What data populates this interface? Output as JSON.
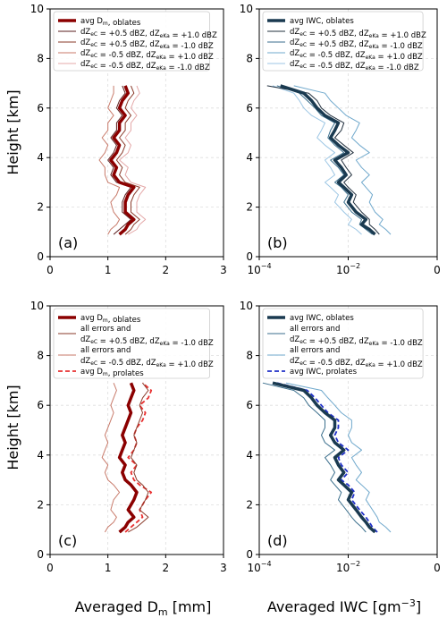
{
  "figure": {
    "ylabel": "Height [km]",
    "xlabel_left": "Averaged D",
    "xlabel_left_sub": "m",
    "xlabel_left_unit": " [mm]",
    "xlabel_right": "Averaged IWC [gm",
    "xlabel_right_sup": "−3",
    "xlabel_right_end": "]"
  },
  "colors": {
    "dm_main": "#8b0000",
    "dm_prolate": "#e83030",
    "iwc_main": "#1a3a50",
    "iwc_prolate": "#2030c8",
    "err_dark_red": "#5a1e1e",
    "err_mid_red": "#8a3a2a",
    "err_light_red": "#c87a6a",
    "err_pale_red": "#e4a8a8",
    "err_dark_blue": "#22303e",
    "err_mid_blue": "#3a6e8c",
    "err_light_blue": "#6fa8cc",
    "err_pale_blue": "#9cc6e4"
  },
  "chart_data": [
    {
      "panel": "(a)",
      "type": "line",
      "xlim": [
        0,
        3
      ],
      "ylim": [
        0,
        10
      ],
      "xticks": [
        "0",
        "1",
        "2",
        "3"
      ],
      "yticks": [
        "0",
        "2",
        "4",
        "6",
        "8",
        "10"
      ],
      "legend_position": "top-left",
      "height_km": [
        0.9,
        1.1,
        1.3,
        1.5,
        1.8,
        2.2,
        2.5,
        2.8,
        3.0,
        3.3,
        3.6,
        3.9,
        4.2,
        4.5,
        4.8,
        5.1,
        5.4,
        5.7,
        6.0,
        6.3,
        6.6,
        6.9
      ],
      "series": [
        {
          "name": "avg D_m, oblates",
          "color_key": "dm_main",
          "width": 3.5,
          "dash": "",
          "values": [
            1.2,
            1.3,
            1.35,
            1.45,
            1.3,
            1.3,
            1.35,
            1.45,
            1.2,
            1.1,
            1.15,
            1.05,
            1.15,
            1.2,
            1.1,
            1.2,
            1.2,
            1.3,
            1.2,
            1.25,
            1.35,
            1.3
          ]
        },
        {
          "name": "dZ_eC = +0.5 dBZ, dZ_eKa = +1.0 dBZ",
          "color_key": "err_dark_red",
          "width": 1,
          "dash": "",
          "values": [
            1.1,
            1.2,
            1.3,
            1.4,
            1.25,
            1.25,
            1.3,
            1.4,
            1.15,
            1.05,
            1.1,
            1.0,
            1.1,
            1.15,
            1.05,
            1.15,
            1.15,
            1.25,
            1.15,
            1.2,
            1.3,
            1.25
          ]
        },
        {
          "name": "dZ_eC = +0.5 dBZ, dZ_eKa = -1.0 dBZ",
          "color_key": "err_mid_red",
          "width": 1,
          "dash": "",
          "values": [
            1.3,
            1.4,
            1.45,
            1.55,
            1.4,
            1.4,
            1.45,
            1.55,
            1.3,
            1.2,
            1.25,
            1.15,
            1.25,
            1.3,
            1.2,
            1.3,
            1.3,
            1.4,
            1.3,
            1.35,
            1.45,
            1.4
          ]
        },
        {
          "name": "dZ_eC = -0.5 dBZ, dZ_eKa = +1.0 dBZ",
          "color_key": "err_light_red",
          "width": 1,
          "dash": "",
          "values": [
            1.0,
            1.05,
            1.15,
            1.2,
            1.1,
            1.05,
            1.15,
            1.2,
            1.0,
            0.95,
            0.95,
            0.85,
            0.95,
            1.0,
            0.9,
            1.0,
            1.0,
            1.1,
            1.0,
            1.05,
            1.1,
            1.1
          ]
        },
        {
          "name": "dZ_eC = -0.5 dBZ, dZ_eKa = -1.0 dBZ",
          "color_key": "err_pale_red",
          "width": 1,
          "dash": "",
          "values": [
            1.35,
            1.5,
            1.55,
            1.65,
            1.5,
            1.5,
            1.55,
            1.65,
            1.4,
            1.3,
            1.35,
            1.2,
            1.35,
            1.4,
            1.3,
            1.4,
            1.4,
            1.5,
            1.4,
            1.45,
            1.55,
            1.5
          ]
        }
      ]
    },
    {
      "panel": "(b)",
      "type": "line",
      "xscale": "log",
      "xlim": [
        0.0001,
        1
      ],
      "ylim": [
        0,
        10
      ],
      "xticks": [
        "10",
        "10",
        "0"
      ],
      "xtick_exponents": [
        "−4",
        "−2",
        ""
      ],
      "yticks": [
        "0",
        "2",
        "4",
        "6",
        "8",
        "10"
      ],
      "legend_position": "top-left",
      "height_km": [
        0.9,
        1.1,
        1.3,
        1.5,
        1.8,
        2.2,
        2.5,
        2.8,
        3.0,
        3.3,
        3.6,
        3.9,
        4.2,
        4.5,
        4.8,
        5.1,
        5.4,
        5.7,
        6.0,
        6.3,
        6.6,
        6.9
      ],
      "series": [
        {
          "name": "avg IWC, oblates",
          "color_key": "iwc_main",
          "width": 3.5,
          "dash": "",
          "values": [
            0.04,
            0.03,
            0.02,
            0.025,
            0.015,
            0.01,
            0.012,
            0.008,
            0.006,
            0.009,
            0.007,
            0.005,
            0.01,
            0.006,
            0.004,
            0.005,
            0.006,
            0.003,
            0.002,
            0.0015,
            0.001,
            0.0003
          ]
        },
        {
          "name": "dZ_eC = +0.5 dBZ, dZ_eKa = +1.0 dBZ",
          "color_key": "err_dark_blue",
          "width": 1,
          "dash": "",
          "values": [
            0.05,
            0.04,
            0.03,
            0.03,
            0.02,
            0.013,
            0.015,
            0.01,
            0.008,
            0.012,
            0.009,
            0.007,
            0.013,
            0.008,
            0.005,
            0.007,
            0.008,
            0.004,
            0.0025,
            0.002,
            0.0013,
            0.00015
          ]
        },
        {
          "name": "dZ_eC = +0.5 dBZ, dZ_eKa = -1.0 dBZ",
          "color_key": "err_mid_blue",
          "width": 1,
          "dash": "",
          "values": [
            0.035,
            0.025,
            0.018,
            0.02,
            0.012,
            0.008,
            0.01,
            0.007,
            0.005,
            0.008,
            0.006,
            0.004,
            0.008,
            0.005,
            0.0035,
            0.004,
            0.005,
            0.0025,
            0.0018,
            0.0012,
            0.0008,
            0.00025
          ]
        },
        {
          "name": "dZ_eC = -0.5 dBZ, dZ_eKa = +1.0 dBZ",
          "color_key": "err_light_blue",
          "width": 1,
          "dash": "",
          "values": [
            0.09,
            0.07,
            0.05,
            0.06,
            0.04,
            0.03,
            0.035,
            0.025,
            0.02,
            0.03,
            0.02,
            0.015,
            0.03,
            0.018,
            0.012,
            0.015,
            0.018,
            0.009,
            0.006,
            0.004,
            0.003,
            0.0006
          ]
        },
        {
          "name": "dZ_eC = -0.5 dBZ, dZ_eKa = -1.0 dBZ",
          "color_key": "err_pale_blue",
          "width": 1,
          "dash": "",
          "values": [
            0.02,
            0.015,
            0.01,
            0.012,
            0.008,
            0.005,
            0.006,
            0.004,
            0.003,
            0.005,
            0.004,
            0.003,
            0.005,
            0.003,
            0.002,
            0.0025,
            0.003,
            0.0015,
            0.001,
            0.0008,
            0.0006,
            0.0002
          ]
        }
      ]
    },
    {
      "panel": "(c)",
      "type": "line",
      "xlim": [
        0,
        3
      ],
      "ylim": [
        0,
        10
      ],
      "xticks": [
        "0",
        "1",
        "2",
        "3"
      ],
      "yticks": [
        "0",
        "2",
        "4",
        "6",
        "8",
        "10"
      ],
      "legend_position": "top-left",
      "height_km": [
        0.9,
        1.1,
        1.3,
        1.5,
        1.8,
        2.2,
        2.5,
        2.8,
        3.0,
        3.3,
        3.6,
        3.9,
        4.2,
        4.5,
        4.8,
        5.1,
        5.4,
        5.7,
        6.0,
        6.3,
        6.6,
        6.9
      ],
      "series": [
        {
          "name": "avg D_m, oblates",
          "color_key": "dm_main",
          "width": 3.5,
          "dash": "",
          "values": [
            1.2,
            1.3,
            1.35,
            1.45,
            1.35,
            1.45,
            1.5,
            1.4,
            1.3,
            1.25,
            1.3,
            1.2,
            1.25,
            1.3,
            1.25,
            1.3,
            1.35,
            1.4,
            1.35,
            1.4,
            1.45,
            1.4
          ]
        },
        {
          "name": "all errors and dZ_eC = +0.5 dBZ, dZ_eKa = -1.0 dBZ",
          "color_key": "err_mid_red",
          "width": 1,
          "dash": "",
          "values": [
            1.35,
            1.5,
            1.6,
            1.7,
            1.55,
            1.65,
            1.7,
            1.6,
            1.5,
            1.45,
            1.5,
            1.4,
            1.45,
            1.5,
            1.45,
            1.5,
            1.55,
            1.6,
            1.55,
            1.6,
            1.7,
            1.6
          ]
        },
        {
          "name": "all errors and dZ_eC = -0.5 dBZ, dZ_eKa = +1.0 dBZ",
          "color_key": "err_light_red",
          "width": 1,
          "dash": "",
          "values": [
            0.95,
            1.0,
            1.1,
            1.15,
            1.05,
            1.1,
            1.2,
            1.1,
            1.0,
            0.95,
            1.0,
            0.9,
            0.95,
            1.0,
            0.95,
            1.0,
            1.05,
            1.1,
            1.05,
            1.1,
            1.15,
            1.1
          ]
        },
        {
          "name": "avg D_m, prolates",
          "color_key": "dm_prolate",
          "width": 1.8,
          "dash": "5,3",
          "values": [
            1.3,
            1.4,
            1.5,
            1.6,
            1.55,
            1.65,
            1.75,
            1.55,
            1.45,
            1.4,
            1.5,
            1.35,
            1.45,
            1.5,
            1.45,
            1.5,
            1.6,
            1.65,
            1.55,
            1.7,
            1.75,
            1.6
          ]
        }
      ]
    },
    {
      "panel": "(d)",
      "type": "line",
      "xscale": "log",
      "xlim": [
        0.0001,
        1
      ],
      "ylim": [
        0,
        10
      ],
      "xticks": [
        "10",
        "10",
        "0"
      ],
      "xtick_exponents": [
        "−4",
        "−2",
        ""
      ],
      "yticks": [
        "0",
        "2",
        "4",
        "6",
        "8",
        "10"
      ],
      "legend_position": "top-left",
      "height_km": [
        0.9,
        1.1,
        1.3,
        1.5,
        1.8,
        2.2,
        2.5,
        2.8,
        3.0,
        3.3,
        3.6,
        3.9,
        4.2,
        4.5,
        4.8,
        5.1,
        5.4,
        5.7,
        6.0,
        6.3,
        6.6,
        6.9
      ],
      "series": [
        {
          "name": "avg IWC, oblates",
          "color_key": "iwc_main",
          "width": 3.5,
          "dash": "",
          "values": [
            0.04,
            0.03,
            0.025,
            0.02,
            0.015,
            0.01,
            0.012,
            0.008,
            0.006,
            0.008,
            0.006,
            0.005,
            0.008,
            0.005,
            0.004,
            0.005,
            0.005,
            0.003,
            0.002,
            0.0015,
            0.001,
            0.0002
          ]
        },
        {
          "name": "all errors and dZ_eC = +0.5 dBZ, dZ_eKa = -1.0 dBZ",
          "color_key": "err_mid_blue",
          "width": 1,
          "dash": "",
          "values": [
            0.025,
            0.02,
            0.015,
            0.012,
            0.009,
            0.006,
            0.007,
            0.005,
            0.004,
            0.005,
            0.004,
            0.003,
            0.005,
            0.003,
            0.0025,
            0.003,
            0.003,
            0.002,
            0.0013,
            0.001,
            0.0006,
            0.00012
          ]
        },
        {
          "name": "all errors and dZ_eC = -0.5 dBZ, dZ_eKa = +1.0 dBZ",
          "color_key": "err_light_blue",
          "width": 1,
          "dash": "",
          "values": [
            0.09,
            0.07,
            0.05,
            0.045,
            0.035,
            0.025,
            0.03,
            0.02,
            0.015,
            0.02,
            0.015,
            0.012,
            0.02,
            0.012,
            0.01,
            0.012,
            0.012,
            0.007,
            0.005,
            0.0035,
            0.0025,
            0.0004
          ]
        },
        {
          "name": "avg IWC, prolates",
          "color_key": "iwc_prolate",
          "width": 1.8,
          "dash": "5,3",
          "values": [
            0.045,
            0.035,
            0.03,
            0.025,
            0.018,
            0.012,
            0.014,
            0.01,
            0.007,
            0.01,
            0.007,
            0.006,
            0.01,
            0.006,
            0.005,
            0.006,
            0.006,
            0.0035,
            0.0025,
            0.0018,
            0.0012,
            0.00025
          ]
        }
      ]
    }
  ]
}
